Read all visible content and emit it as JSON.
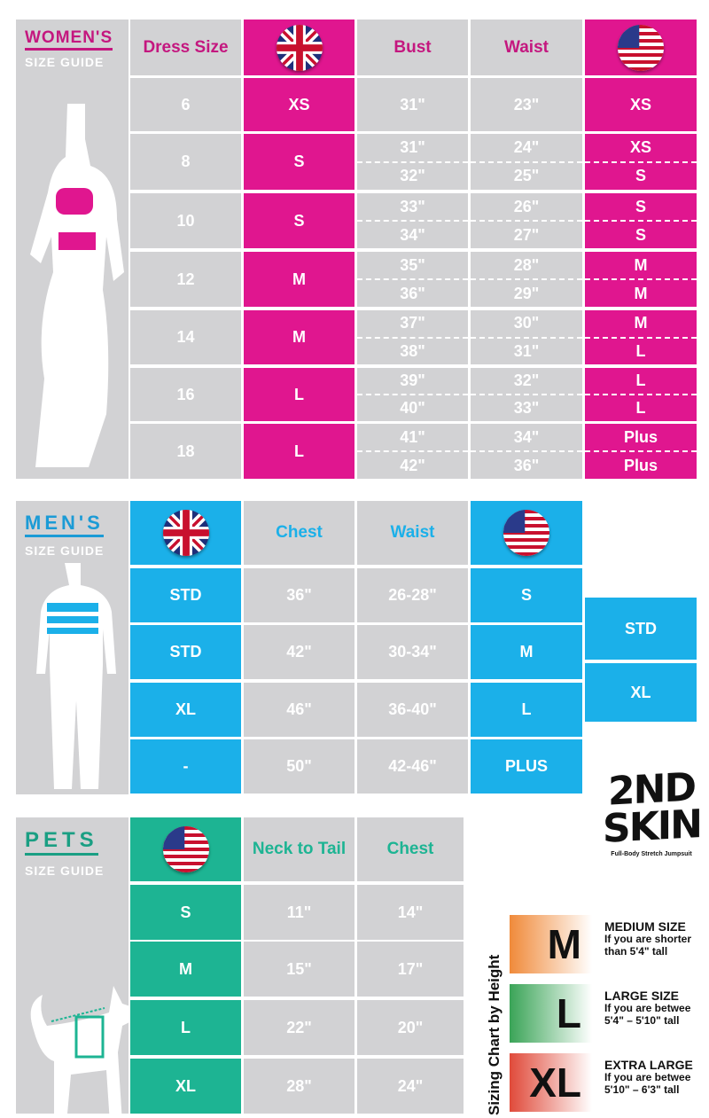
{
  "colors": {
    "women": "#e0168f",
    "men": "#1bb0e9",
    "pets": "#1db493",
    "grey": "#d2d2d4"
  },
  "women": {
    "title": "WOMEN'S",
    "subtitle": "SIZE GUIDE",
    "headers": {
      "dress": "Dress Size",
      "uk": "uk-flag-icon",
      "bust": "Bust",
      "waist": "Waist",
      "us": "us-flag-icon"
    },
    "rows": [
      {
        "dress": "6",
        "uk": "XS",
        "bust": [
          "31\""
        ],
        "waist": [
          "23\""
        ],
        "us": [
          "XS"
        ]
      },
      {
        "dress": "8",
        "uk": "S",
        "bust": [
          "31\"",
          "32\""
        ],
        "waist": [
          "24\"",
          "25\""
        ],
        "us": [
          "XS",
          "S"
        ]
      },
      {
        "dress": "10",
        "uk": "S",
        "bust": [
          "33\"",
          "34\""
        ],
        "waist": [
          "26\"",
          "27\""
        ],
        "us": [
          "S",
          "S"
        ]
      },
      {
        "dress": "12",
        "uk": "M",
        "bust": [
          "35\"",
          "36\""
        ],
        "waist": [
          "28\"",
          "29\""
        ],
        "us": [
          "M",
          "M"
        ]
      },
      {
        "dress": "14",
        "uk": "M",
        "bust": [
          "37\"",
          "38\""
        ],
        "waist": [
          "30\"",
          "31\""
        ],
        "us": [
          "M",
          "L"
        ]
      },
      {
        "dress": "16",
        "uk": "L",
        "bust": [
          "39\"",
          "40\""
        ],
        "waist": [
          "32\"",
          "33\""
        ],
        "us": [
          "L",
          "L"
        ]
      },
      {
        "dress": "18",
        "uk": "L",
        "bust": [
          "41\"",
          "42\""
        ],
        "waist": [
          "34\"",
          "36\""
        ],
        "us": [
          "Plus",
          "Plus"
        ]
      }
    ]
  },
  "men": {
    "title": "MEN'S",
    "subtitle": "SIZE GUIDE",
    "headers": {
      "chest": "Chest",
      "waist": "Waist"
    },
    "rows": [
      {
        "uk": "STD",
        "chest": "36\"",
        "waist": "26-28\"",
        "us": "S"
      },
      {
        "uk": "STD",
        "chest": "42\"",
        "waist": "30-34\"",
        "us": "M"
      },
      {
        "uk": "XL",
        "chest": "46\"",
        "waist": "36-40\"",
        "us": "L"
      },
      {
        "uk": "-",
        "chest": "50\"",
        "waist": "42-46\"",
        "us": "PLUS"
      }
    ],
    "extra": [
      "STD",
      "XL"
    ]
  },
  "pets": {
    "title": "PETS",
    "subtitle": "SIZE GUIDE",
    "headers": {
      "neck": "Neck to Tail",
      "chest": "Chest"
    },
    "rows": [
      {
        "us": "S",
        "neck": "11\"",
        "chest": "14\""
      },
      {
        "us": "M",
        "neck": "15\"",
        "chest": "17\""
      },
      {
        "us": "L",
        "neck": "22\"",
        "chest": "20\""
      },
      {
        "us": "XL",
        "neck": "28\"",
        "chest": "24\""
      }
    ]
  },
  "logo": {
    "text": "2ND SKIN",
    "tagline": "Full-Body Stretch Jumpsuit"
  },
  "height_chart": {
    "title": "Sizing Chart by Height",
    "items": [
      {
        "size": "M",
        "label": "MEDIUM SIZE",
        "line1": "If you are shorter",
        "line2": "than 5'4\" tall",
        "color": "#f08a3a"
      },
      {
        "size": "L",
        "label": "LARGE SIZE",
        "line1": "If you are betwee",
        "line2": "5'4\" – 5'10\" tall",
        "color": "#3aa457"
      },
      {
        "size": "XL",
        "label": "EXTRA LARGE",
        "line1": "If you are betwee",
        "line2": "5'10\" – 6'3\" tall",
        "color": "#e04a3a"
      }
    ]
  }
}
